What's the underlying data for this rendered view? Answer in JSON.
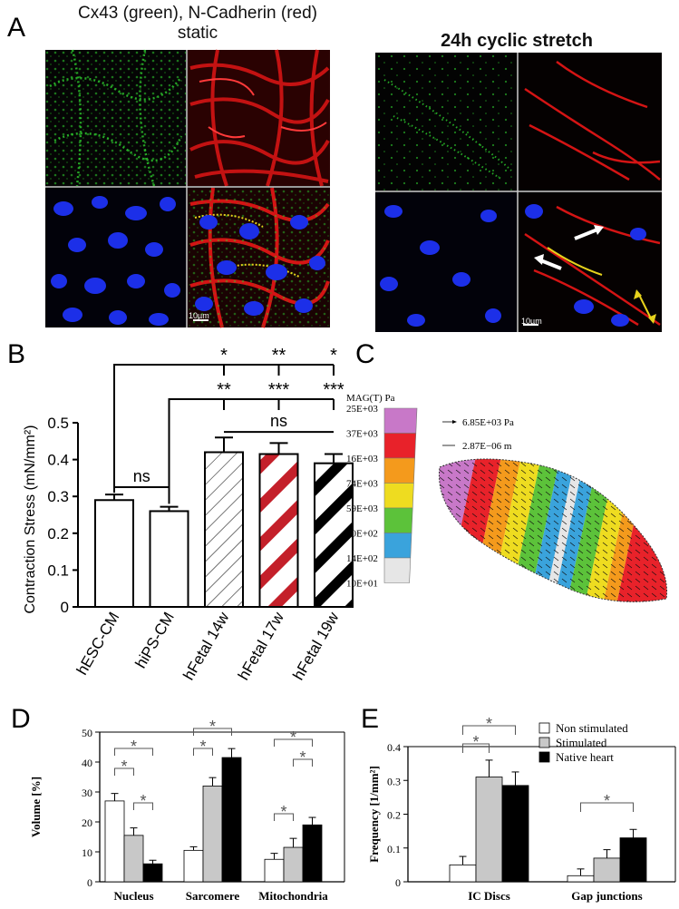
{
  "panelA": {
    "label": "A",
    "left_title_line1": "Cx43 (green), N-Cadherin (red)",
    "left_title_line2": "static",
    "right_title": "24h cyclic stretch",
    "scalebar": "10µm",
    "colors": {
      "green": "#2ed12e",
      "red": "#d41414",
      "blue": "#1c2fe8",
      "yellow": "#e6d21c"
    }
  },
  "panelB": {
    "label": "B",
    "chart_data": {
      "type": "bar",
      "categories": [
        "hESC-CM",
        "hiPS-CM",
        "hFetal 14w",
        "hFetal 17w",
        "hFetal 19w"
      ],
      "values": [
        0.29,
        0.26,
        0.42,
        0.415,
        0.39
      ],
      "errors": [
        0.015,
        0.012,
        0.04,
        0.03,
        0.025
      ],
      "ylabel": "Contraction Stress (mN/mm²)",
      "ylim": [
        0,
        0.5
      ],
      "yticks": [
        "0",
        "0.1",
        "0.2",
        "0.3",
        "0.4",
        "0.5"
      ],
      "significance": [
        {
          "text": "ns",
          "from": "hESC-CM",
          "to": "hiPS-CM"
        },
        {
          "text": "ns",
          "from": "hFetal 14w",
          "to": "hFetal 19w"
        },
        {
          "text": "*",
          "row": 1,
          "at": "hFetal 14w"
        },
        {
          "text": "**",
          "row": 1,
          "at": "hFetal 17w"
        },
        {
          "text": "*",
          "row": 1,
          "at": "hFetal 19w"
        },
        {
          "text": "**",
          "row": 2,
          "at": "hFetal 14w"
        },
        {
          "text": "***",
          "row": 2,
          "at": "hFetal 17w"
        },
        {
          "text": "***",
          "row": 2,
          "at": "hFetal 19w"
        }
      ],
      "pattern_colors": [
        "#ffffff",
        "#ffffff",
        "#000000",
        "#c4202a",
        "#000000"
      ]
    }
  },
  "panelC": {
    "label": "C",
    "legend_title": "MAG(T) Pa",
    "legend_values": [
      "25E+03",
      "37E+03",
      "16E+03",
      "74E+03",
      "59E+03",
      "90E+02",
      "14E+02",
      "10E+01"
    ],
    "legend_colors": [
      "#c878c8",
      "#e8222a",
      "#f49a1c",
      "#eedc20",
      "#5cc23a",
      "#3aa3dc",
      "#e6e6e6"
    ],
    "vector_label_force": "6.85E+03 Pa",
    "vector_label_disp": "2.87E−06 m"
  },
  "panelD": {
    "label": "D",
    "chart_data": {
      "type": "bar",
      "categories": [
        "Nucleus",
        "Sarcomere",
        "Mitochondria"
      ],
      "series": [
        {
          "values": [
            27,
            10.5,
            7.5
          ],
          "errors": [
            2.5,
            1.2,
            2.0
          ],
          "color": "#ffffff"
        },
        {
          "values": [
            15.5,
            32,
            11.5
          ],
          "errors": [
            2.5,
            2.8,
            3.0
          ],
          "color": "#c8c8c8"
        },
        {
          "values": [
            6,
            41.5,
            19
          ],
          "errors": [
            1.2,
            3.0,
            2.5
          ],
          "color": "#000000"
        }
      ],
      "ylabel": "Volume [%]",
      "ylim": [
        0,
        50
      ],
      "yticks": [
        "0",
        "10",
        "20",
        "30",
        "40",
        "50"
      ],
      "star": "*"
    }
  },
  "panelE": {
    "label": "E",
    "chart_data": {
      "type": "bar",
      "categories": [
        "IC Discs",
        "Gap junctions"
      ],
      "series": [
        {
          "name": "Non stimulated",
          "values": [
            0.05,
            0.018
          ],
          "errors": [
            0.025,
            0.02
          ],
          "color": "#ffffff"
        },
        {
          "name": "Stimulated",
          "values": [
            0.31,
            0.07
          ],
          "errors": [
            0.05,
            0.025
          ],
          "color": "#c8c8c8"
        },
        {
          "name": "Native heart",
          "values": [
            0.285,
            0.13
          ],
          "errors": [
            0.04,
            0.025
          ],
          "color": "#000000"
        }
      ],
      "ylabel": "Frequency [1/mm²]",
      "ylim": [
        0,
        0.4
      ],
      "yticks": [
        "0",
        "0.1",
        "0.2",
        "0.3",
        "0.4"
      ],
      "legend_position": "top-right",
      "star": "*"
    }
  }
}
